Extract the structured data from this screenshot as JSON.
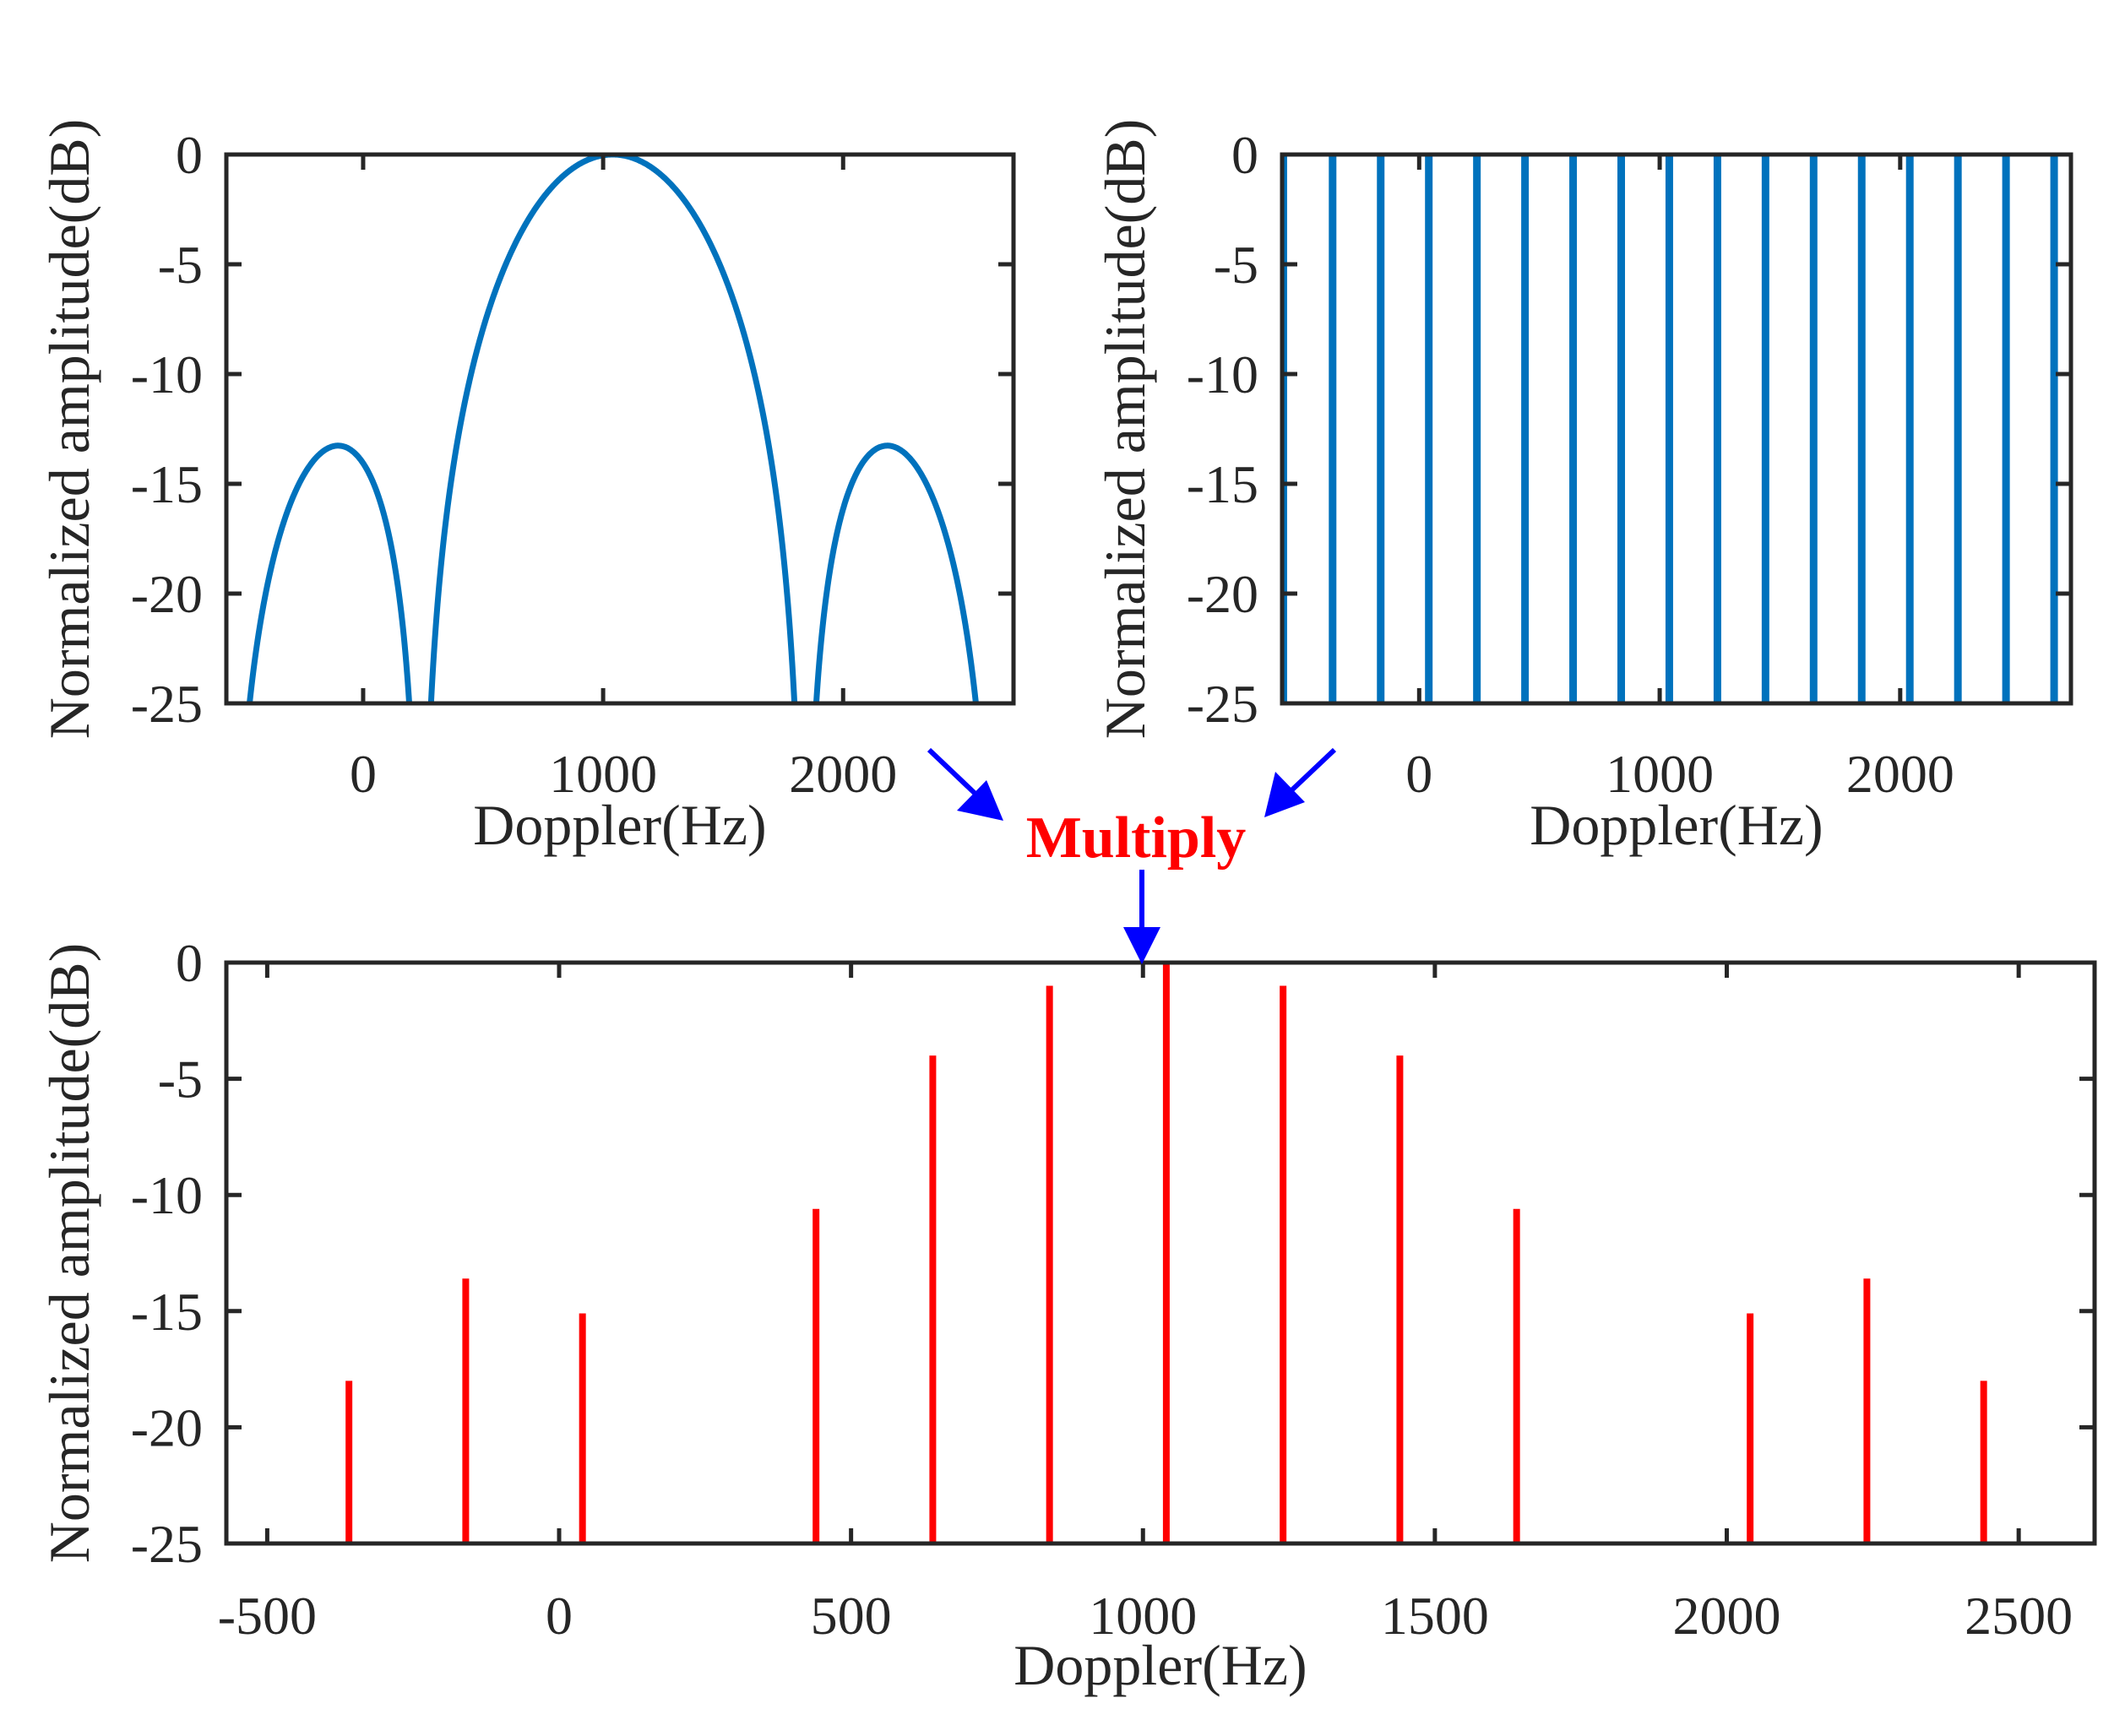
{
  "annotation": {
    "multiply_label": "Multiply",
    "arrow_color": "#0000ff",
    "label_color": "#ff0000"
  },
  "chart_data": [
    {
      "id": "envelope",
      "type": "line",
      "xlabel": "Doppler(Hz)",
      "ylabel": "Normalized amplitude(dB)",
      "xlim": [
        -570,
        2710
      ],
      "ylim": [
        -25,
        0
      ],
      "xticks": [
        0,
        1000,
        2000
      ],
      "yticks": [
        0,
        -5,
        -10,
        -15,
        -20,
        -25
      ],
      "color": "#0072bd",
      "description_params": {
        "center": 1040,
        "null_spacing": 800
      },
      "peaks": [
        {
          "x": -110,
          "y": -13.3
        },
        {
          "x": 1040,
          "y": 0
        },
        {
          "x": 2190,
          "y": -13.3
        }
      ]
    },
    {
      "id": "comb",
      "type": "bar",
      "xlabel": "Doppler(Hz)",
      "ylabel": "Normalized amplitude(dB)",
      "xlim": [
        -570,
        2710
      ],
      "ylim": [
        -25,
        0
      ],
      "xticks": [
        0,
        1000,
        2000
      ],
      "yticks": [
        0,
        -5,
        -10,
        -15,
        -20,
        -25
      ],
      "color": "#0072bd",
      "x": [
        -565,
        -360,
        -160,
        40,
        240,
        440,
        640,
        840,
        1040,
        1240,
        1440,
        1640,
        1840,
        2040,
        2240,
        2440,
        2640
      ],
      "values": [
        0,
        0,
        0,
        0,
        0,
        0,
        0,
        0,
        0,
        0,
        0,
        0,
        0,
        0,
        0,
        0,
        0
      ]
    },
    {
      "id": "product",
      "type": "bar",
      "xlabel": "Doppler(Hz)",
      "ylabel": "Normalized amplitude(dB)",
      "xlim": [
        -570,
        2630
      ],
      "ylim": [
        -25,
        0
      ],
      "xticks": [
        -500,
        0,
        500,
        1000,
        1500,
        2000,
        2500
      ],
      "yticks": [
        0,
        -5,
        -10,
        -15,
        -20,
        -25
      ],
      "color": "#ff0000",
      "x": [
        -360,
        -160,
        40,
        440,
        640,
        840,
        1040,
        1240,
        1440,
        1640,
        2040,
        2240,
        2440
      ],
      "values": [
        -18,
        -13.6,
        -15.1,
        -10.6,
        -4,
        -1,
        0,
        -1,
        -4,
        -10.6,
        -15.1,
        -13.6,
        -18
      ]
    }
  ]
}
